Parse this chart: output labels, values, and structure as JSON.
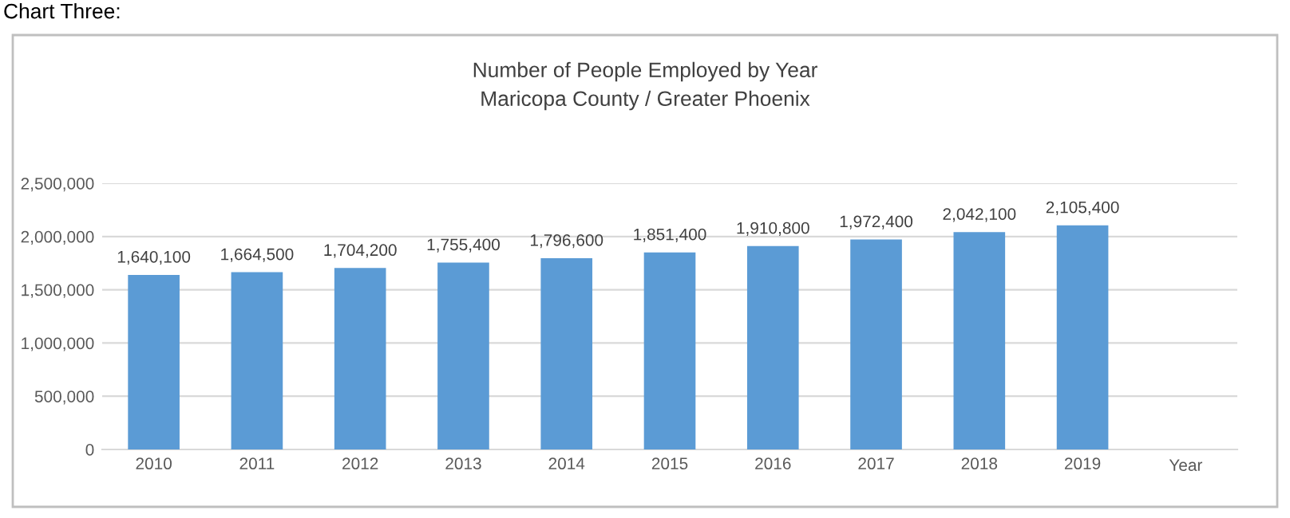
{
  "chart_data": {
    "type": "bar",
    "title": "Number of People Employed by Year",
    "subtitle": "Maricopa County / Greater Phoenix",
    "xlabel": "Year",
    "annotations": [
      "Chart Three:"
    ],
    "categories": [
      "2010",
      "2011",
      "2012",
      "2013",
      "2014",
      "2015",
      "2016",
      "2017",
      "2018",
      "2019"
    ],
    "values": [
      1640100,
      1664500,
      1704200,
      1755400,
      1796600,
      1851400,
      1910800,
      1972400,
      2042100,
      2105400
    ],
    "value_labels": [
      "1,640,100",
      "1,664,500",
      "1,704,200",
      "1,755,400",
      "1,796,600",
      "1,851,400",
      "1,910,800",
      "1,972,400",
      "2,042,100",
      "2,105,400"
    ],
    "color": "#5b9bd5",
    "grid": "y",
    "ylim": [
      0,
      2500000
    ],
    "yticks": [
      {
        "value": 0,
        "label": "0"
      },
      {
        "value": 500000,
        "label": "500,000"
      },
      {
        "value": 1000000,
        "label": "1,000,000"
      },
      {
        "value": 1500000,
        "label": "1,500,000"
      },
      {
        "value": 2000000,
        "label": "2,000,000"
      },
      {
        "value": 2500000,
        "label": "2,500,000"
      }
    ]
  }
}
